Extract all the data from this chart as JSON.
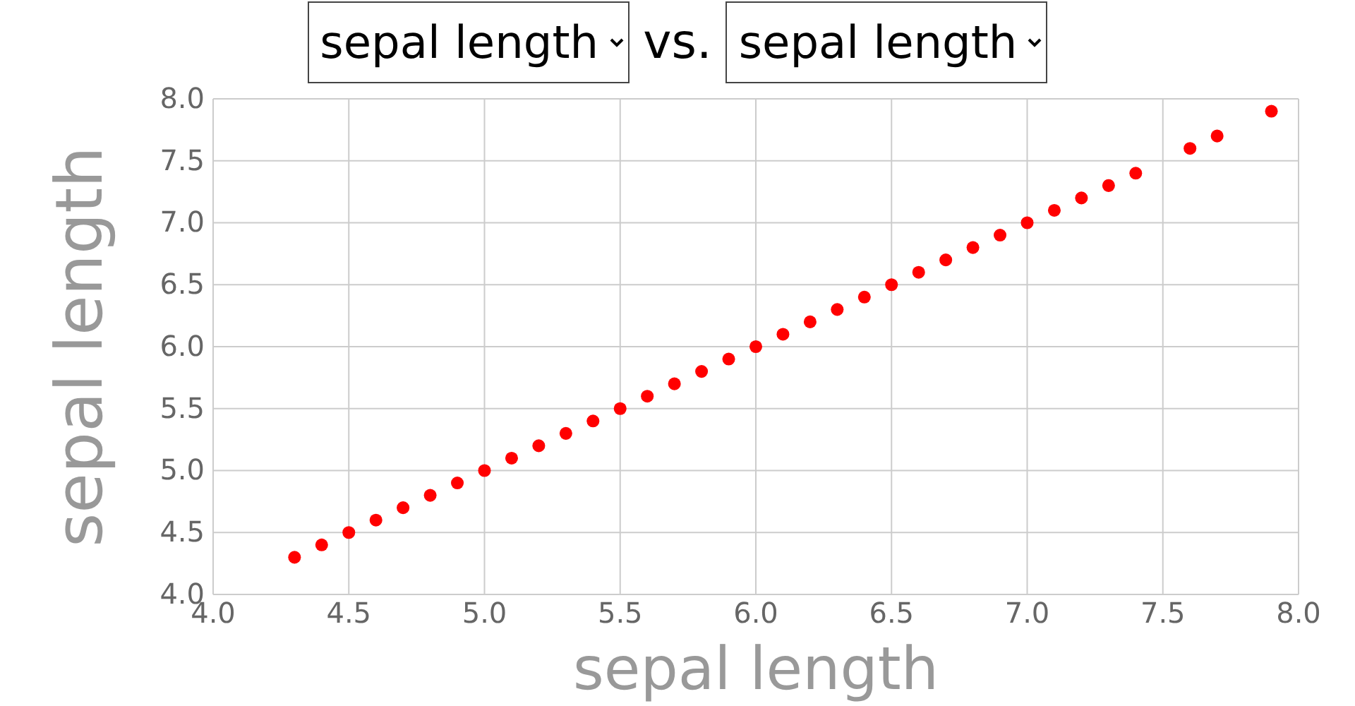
{
  "chart_data": {
    "type": "scatter",
    "annotations": [
      "vs."
    ],
    "xlabel": "sepal length",
    "ylabel": "sepal length",
    "x": [
      4.3,
      4.4,
      4.5,
      4.6,
      4.7,
      4.8,
      4.9,
      5.0,
      5.1,
      5.2,
      5.3,
      5.4,
      5.5,
      5.6,
      5.7,
      5.8,
      5.9,
      6.0,
      6.1,
      6.2,
      6.3,
      6.4,
      6.5,
      6.6,
      6.7,
      6.8,
      6.9,
      7.0,
      7.1,
      7.2,
      7.3,
      7.4,
      7.6,
      7.7,
      7.9
    ],
    "series": [
      {
        "color": "#ff0000",
        "values": [
          4.3,
          4.4,
          4.5,
          4.6,
          4.7,
          4.8,
          4.9,
          5.0,
          5.1,
          5.2,
          5.3,
          5.4,
          5.5,
          5.6,
          5.7,
          5.8,
          5.9,
          6.0,
          6.1,
          6.2,
          6.3,
          6.4,
          6.5,
          6.6,
          6.7,
          6.8,
          6.9,
          7.0,
          7.1,
          7.2,
          7.3,
          7.4,
          7.6,
          7.7,
          7.9
        ]
      }
    ],
    "xlim": [
      4.0,
      8.0
    ],
    "ylim": [
      4.0,
      8.0
    ],
    "xticks": [
      {
        "value": 4,
        "label": "4.0"
      },
      4.5,
      {
        "value": 5,
        "label": "5.0"
      },
      5.5,
      {
        "value": 6,
        "label": "6.0"
      },
      6.5,
      {
        "value": 7,
        "label": "7.0"
      },
      7.5,
      {
        "value": 8,
        "label": "8.0"
      }
    ],
    "yticks": [
      {
        "value": 4,
        "label": "4.0"
      },
      4.5,
      {
        "value": 5,
        "label": "5.0"
      },
      5.5,
      {
        "value": 6,
        "label": "6.0"
      },
      6.5,
      {
        "value": 7,
        "label": "7.0"
      },
      7.5,
      {
        "value": 8,
        "label": "8.0"
      }
    ],
    "grid": true,
    "marker": "circle"
  }
}
